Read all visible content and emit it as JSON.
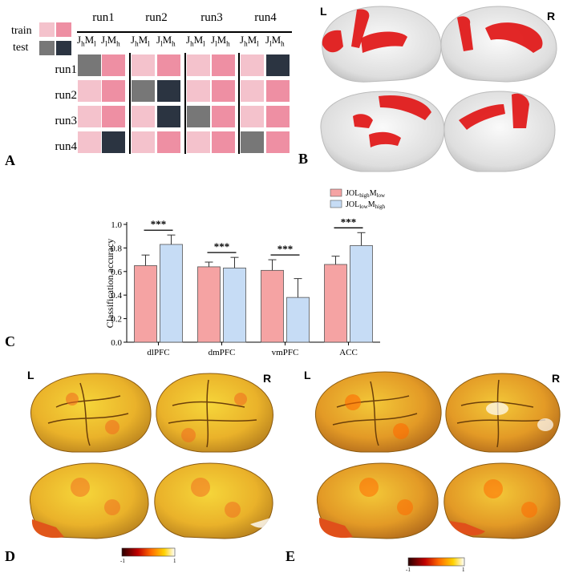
{
  "panels": {
    "A": "A",
    "B": "B",
    "C": "C",
    "D": "D",
    "E": "E"
  },
  "hemi": {
    "left": "L",
    "right": "R"
  },
  "panelA": {
    "legend": {
      "train": "train",
      "test": "test"
    },
    "runs": [
      "run1",
      "run2",
      "run3",
      "run4"
    ],
    "sub_labels": {
      "a_main": "J",
      "a_sub1": "h",
      "a_m": "M",
      "a_sub2": "l",
      "b_main": "J",
      "b_sub1": "l",
      "b_m": "M",
      "b_sub2": "h"
    },
    "rows": [
      "run1",
      "run2",
      "run3",
      "run4"
    ],
    "colors": {
      "light": "#f4c2cc",
      "pink": "#ee8fa3",
      "gray": "#777777",
      "dark": "#2b3441"
    },
    "matrix": [
      [
        "gray",
        "pink",
        "light",
        "pink",
        "light",
        "pink",
        "light",
        "dark"
      ],
      [
        "light",
        "pink",
        "gray",
        "dark",
        "light",
        "pink",
        "light",
        "pink"
      ],
      [
        "light",
        "pink",
        "light",
        "dark",
        "gray",
        "pink",
        "light",
        "pink"
      ],
      [
        "light",
        "dark",
        "light",
        "pink",
        "light",
        "pink",
        "gray",
        "pink"
      ]
    ]
  },
  "chart_data": {
    "type": "bar",
    "ylabel": "Classification accuracy",
    "ylim": [
      0,
      1.0
    ],
    "yticks": [
      "0.0",
      "0.2",
      "0.4",
      "0.6",
      "0.8",
      "1.0"
    ],
    "categories": [
      "dlPFC",
      "dmPFC",
      "vmPFC",
      "ACC"
    ],
    "series": [
      {
        "name_main": "JOL",
        "name_sub": "high",
        "name_m": "M",
        "name_sub2": "low",
        "color": "#f5a3a3",
        "values": [
          0.65,
          0.64,
          0.61,
          0.66
        ],
        "errors": [
          0.09,
          0.04,
          0.09,
          0.07
        ]
      },
      {
        "name_main": "JOL",
        "name_sub": "low",
        "name_m": "M",
        "name_sub2": "high",
        "color": "#c6dcf5",
        "values": [
          0.83,
          0.63,
          0.38,
          0.82
        ],
        "errors": [
          0.08,
          0.09,
          0.16,
          0.11
        ]
      }
    ],
    "significance": [
      "***",
      "***",
      "***",
      "***"
    ]
  },
  "colorbarD": {
    "min": "-1",
    "max": "1"
  },
  "colorbarE": {
    "min": "-1",
    "max": "1"
  }
}
